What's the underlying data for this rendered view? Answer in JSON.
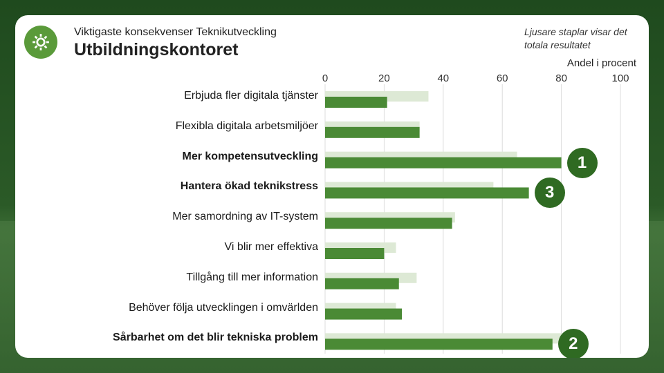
{
  "header": {
    "subtitle": "Viktigaste konsekvenser Teknikutveckling",
    "title": "Utbildningskontoret",
    "logo_icon": "gear-icon"
  },
  "note": "Ljusare staplar visar det totala resultatet",
  "colors": {
    "accent": "#4a8a35",
    "total": "#dde9d5",
    "badge": "#2f6a22",
    "grid": "#dcdcdc"
  },
  "chart_data": {
    "type": "bar",
    "orientation": "horizontal",
    "xlabel": "Andel i procent",
    "xlim": [
      0,
      100
    ],
    "xticks": [
      "0",
      "20",
      "40",
      "60",
      "80",
      "100"
    ],
    "grid": true,
    "categories": [
      "Erbjuda fler digitala tjänster",
      "Flexibla digitala arbetsmiljöer",
      "Mer kompetensutveckling",
      "Hantera ökad teknikstress",
      "Mer samordning av IT-system",
      "Vi blir mer effektiva",
      "Tillgång till mer information",
      "Behöver följa utvecklingen i omvärlden",
      "Sårbarhet om det blir tekniska problem"
    ],
    "bold_categories": [
      2,
      3,
      8
    ],
    "series": [
      {
        "values": [
          21,
          32,
          80,
          69,
          43,
          20,
          25,
          26,
          77
        ]
      },
      {
        "values": [
          35,
          32,
          65,
          57,
          44,
          24,
          31,
          24,
          81
        ]
      }
    ],
    "ranks": [
      {
        "category_index": 2,
        "label": "1"
      },
      {
        "category_index": 3,
        "label": "3"
      },
      {
        "category_index": 8,
        "label": "2"
      }
    ]
  }
}
